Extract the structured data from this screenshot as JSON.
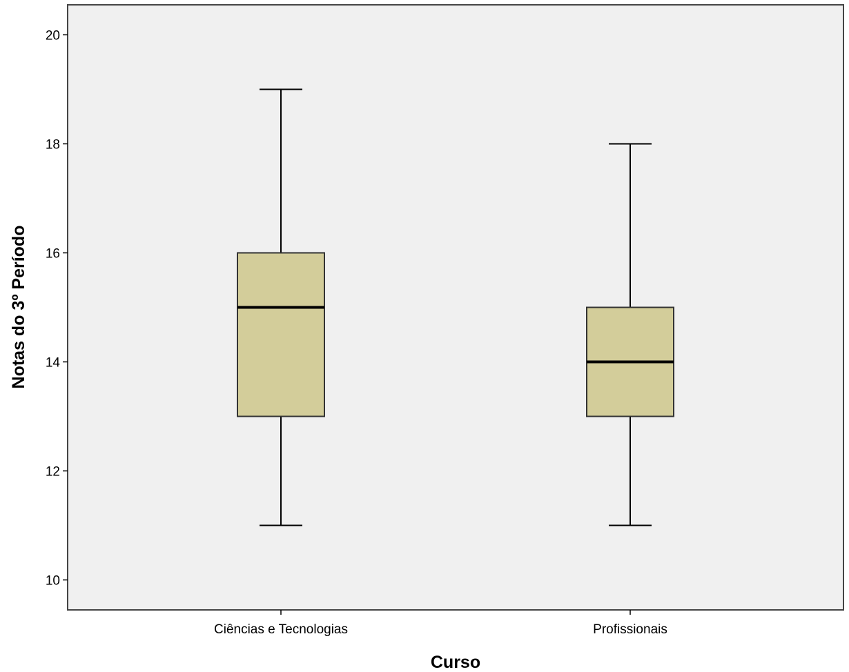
{
  "chart_data": {
    "type": "boxplot",
    "title": "",
    "xlabel": "Curso",
    "ylabel": "Notas do 3º Período",
    "ylim": [
      9.45,
      20.55
    ],
    "y_ticks": [
      10,
      12,
      14,
      16,
      18,
      20
    ],
    "y_tick_labels": [
      "10",
      "12",
      "14",
      "16",
      "18",
      "20"
    ],
    "categories": [
      "Ciências e Tecnologias",
      "Profissionais"
    ],
    "boxes": [
      {
        "category": "Ciências e Tecnologias",
        "min": 11,
        "q1": 13,
        "median": 15,
        "q3": 16,
        "max": 19
      },
      {
        "category": "Profissionais",
        "min": 11,
        "q1": 13,
        "median": 14,
        "q3": 15,
        "max": 18
      }
    ],
    "grid": false,
    "legend": "none",
    "colors": {
      "box_fill": "#D3CD9A",
      "plot_background": "#F0F0F0",
      "stroke": "#000000",
      "frame": "#444444"
    }
  }
}
